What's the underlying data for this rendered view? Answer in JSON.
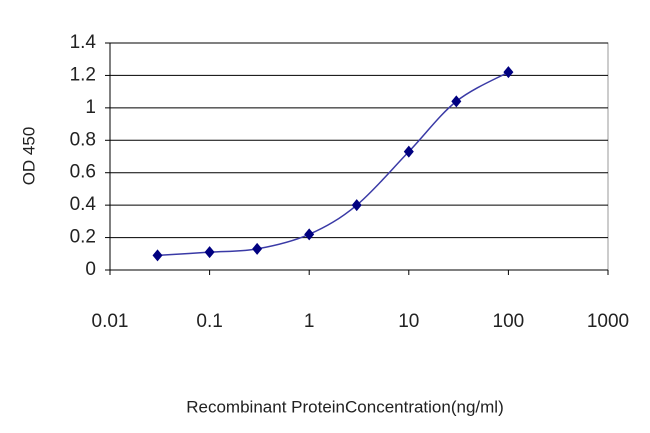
{
  "chart_data": {
    "type": "line",
    "x_label": "Recombinant ProteinConcentration(ng/ml)",
    "y_label": "OD 450",
    "series": [
      {
        "color": "#3a3aa6",
        "marker_color": "#000080",
        "x": [
          0.03,
          0.1,
          0.3,
          1,
          3,
          10,
          30,
          100
        ],
        "values": [
          0.09,
          0.11,
          0.13,
          0.22,
          0.4,
          0.73,
          1.04,
          1.22
        ]
      }
    ],
    "xlim": [
      0.01,
      1000
    ],
    "xticks": [
      0.01,
      0.1,
      1,
      10,
      100,
      1000
    ],
    "xscale": "log",
    "ylim": [
      0,
      1.4
    ],
    "yticks": [
      0,
      0.2,
      0.4,
      0.6,
      0.8,
      1,
      1.2,
      1.4
    ],
    "grid": true
  }
}
